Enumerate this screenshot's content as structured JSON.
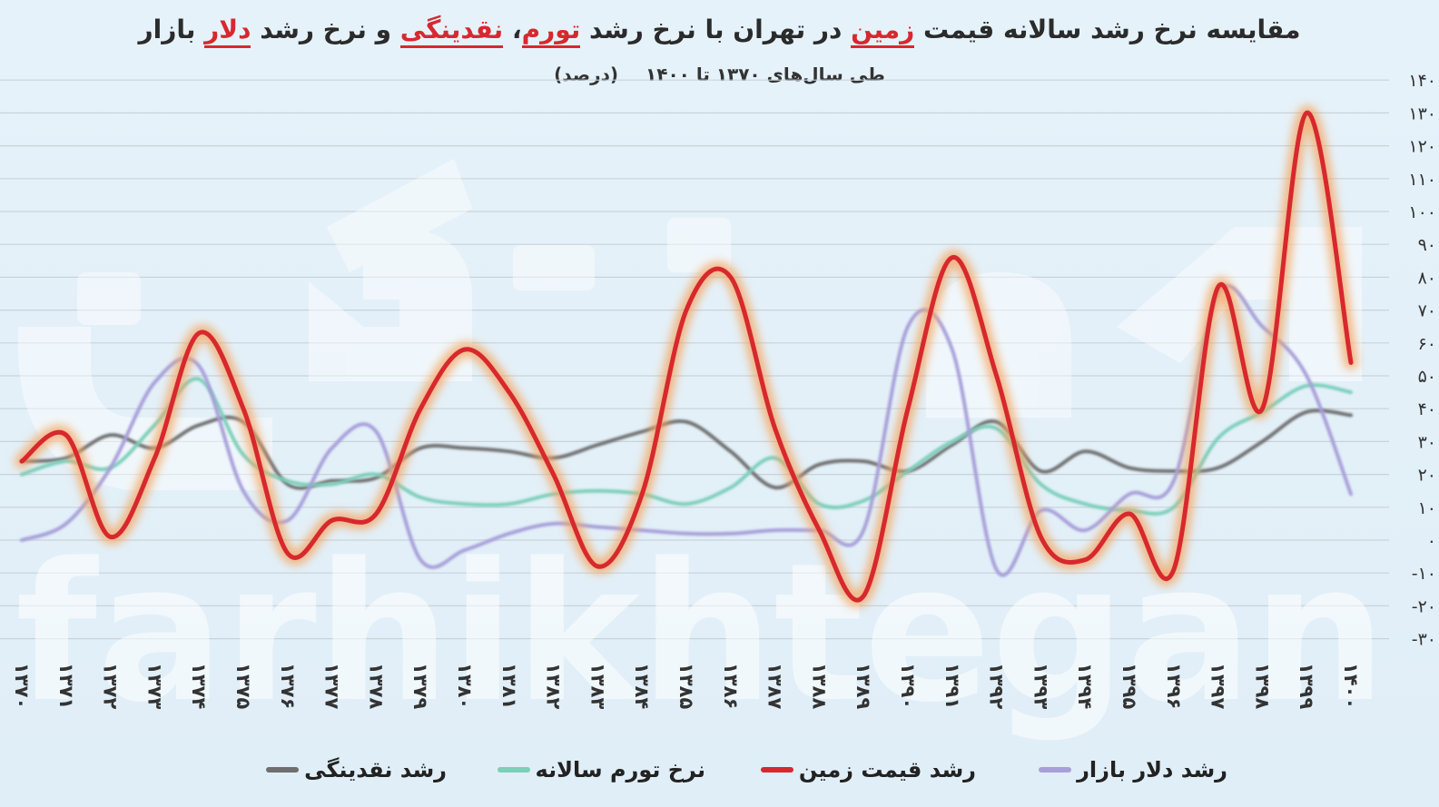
{
  "header": {
    "title_parts": [
      {
        "text": "مقایسه نرخ رشد سالانه قیمت ",
        "hl": false
      },
      {
        "text": "زمین",
        "hl": true
      },
      {
        "text": " در تهران با نرخ رشد ",
        "hl": false
      },
      {
        "text": "تورم",
        "hl": true
      },
      {
        "text": "، ",
        "hl": false
      },
      {
        "text": "نقدینگی",
        "hl": true
      },
      {
        "text": " و نرخ رشد ",
        "hl": false
      },
      {
        "text": "دلار",
        "hl": true
      },
      {
        "text": " بازار",
        "hl": false
      }
    ],
    "subtitle_main": "طی سال‌های ۱۳۷۰ تا ۱۴۰۰",
    "subtitle_unit": "(درصد)"
  },
  "watermark": "farhikhtegan",
  "colors": {
    "land": "#d7282f",
    "land_glow": "#f5a15a",
    "liquidity": "#6f6f6f",
    "inflation": "#7ccfb9",
    "dollar": "#a79fd9",
    "grid": "#c9d2d9",
    "title_highlight": "#d7282f"
  },
  "chart_data": {
    "type": "line",
    "title": "مقایسه نرخ رشد سالانه قیمت زمین در تهران با نرخ رشد تورم، نقدینگی و نرخ رشد دلار بازار",
    "subtitle": "طی سال‌های ۱۳۷۰ تا ۱۴۰۰ (درصد)",
    "x": [
      "۱۳۷۰",
      "۱۳۷۱",
      "۱۳۷۲",
      "۱۳۷۳",
      "۱۳۷۴",
      "۱۳۷۵",
      "۱۳۷۶",
      "۱۳۷۷",
      "۱۳۷۸",
      "۱۳۷۹",
      "۱۳۸۰",
      "۱۳۸۱",
      "۱۳۸۲",
      "۱۳۸۳",
      "۱۳۸۴",
      "۱۳۸۵",
      "۱۳۸۶",
      "۱۳۸۷",
      "۱۳۸۸",
      "۱۳۸۹",
      "۱۳۹۰",
      "۱۳۹۱",
      "۱۳۹۲",
      "۱۳۹۳",
      "۱۳۹۴",
      "۱۳۹۵",
      "۱۳۹۶",
      "۱۳۹۷",
      "۱۳۹۸",
      "۱۳۹۹",
      "۱۴۰۰"
    ],
    "y_ticks": [
      -30,
      -20,
      -10,
      0,
      10,
      20,
      30,
      40,
      50,
      60,
      70,
      80,
      90,
      100,
      110,
      120,
      130,
      140
    ],
    "y_tick_labels": [
      "-۳۰",
      "-۲۰",
      "-۱۰",
      "۰",
      "۱۰",
      "۲۰",
      "۳۰",
      "۴۰",
      "۵۰",
      "۶۰",
      "۷۰",
      "۸۰",
      "۹۰",
      "۱۰۰",
      "۱۱۰",
      "۱۲۰",
      "۱۳۰",
      "۱۴۰"
    ],
    "ylim": [
      -30,
      140
    ],
    "grid": true,
    "legend_position": "bottom",
    "series": [
      {
        "key": "liquidity",
        "name": "رشد نقدینگی",
        "values": [
          24,
          25,
          32,
          28,
          35,
          36,
          17,
          18,
          19,
          28,
          28,
          27,
          25,
          29,
          33,
          36,
          27,
          16,
          23,
          24,
          21,
          29,
          36,
          21,
          27,
          22,
          21,
          22,
          30,
          39,
          38
        ]
      },
      {
        "key": "inflation",
        "name": "نرخ تورم سالانه",
        "values": [
          20,
          24,
          22,
          35,
          49,
          26,
          18,
          17,
          20,
          13,
          11,
          11,
          14,
          15,
          14,
          11,
          16,
          25,
          11,
          12,
          21,
          30,
          34,
          17,
          11,
          9,
          10,
          31,
          39,
          47,
          45
        ]
      },
      {
        "key": "land",
        "name": "رشد قیمت زمین",
        "values": [
          24,
          32,
          1,
          25,
          63,
          40,
          -4,
          6,
          8,
          40,
          58,
          45,
          20,
          -8,
          14,
          70,
          80,
          34,
          3,
          -17,
          40,
          86,
          50,
          1,
          -6,
          8,
          -9,
          77,
          40,
          130,
          54
        ]
      },
      {
        "key": "dollar",
        "name": "رشد دلار بازار",
        "values": [
          0,
          5,
          22,
          48,
          53,
          15,
          6,
          28,
          33,
          -6,
          -3,
          2,
          5,
          4,
          3,
          2,
          2,
          3,
          3,
          3,
          65,
          58,
          -9,
          9,
          3,
          14,
          18,
          75,
          65,
          50,
          14
        ]
      }
    ]
  }
}
